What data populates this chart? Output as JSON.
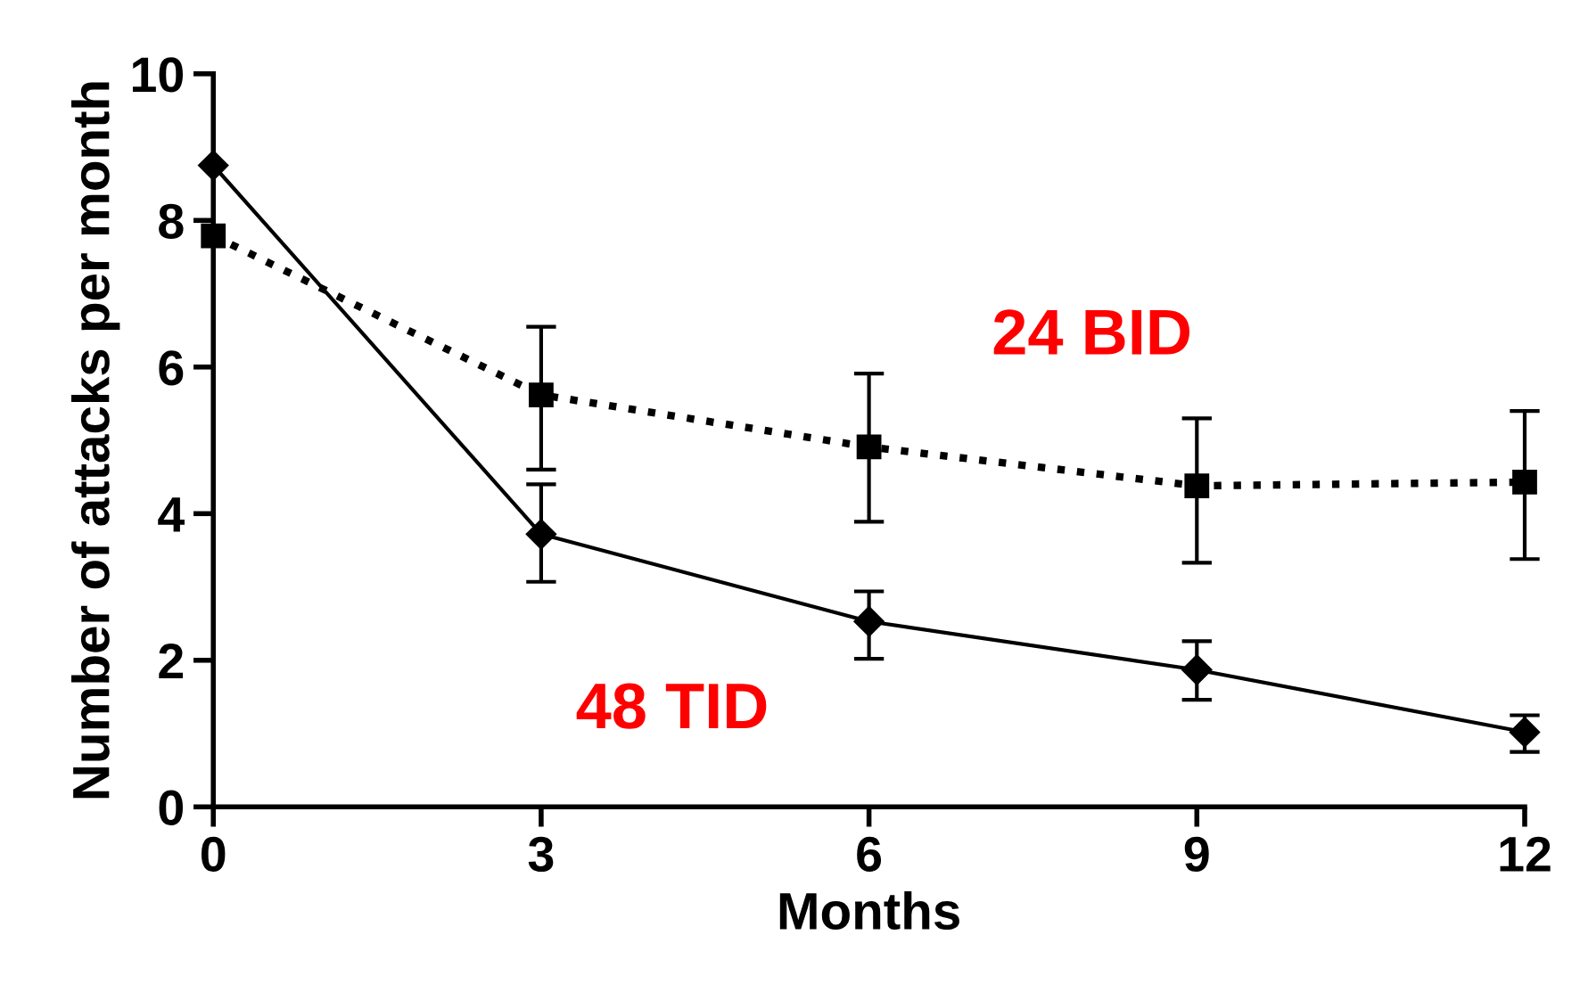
{
  "chart_data": {
    "type": "line",
    "xlabel": "Months",
    "ylabel": "Number of attacks per month",
    "x": [
      0,
      3,
      6,
      9,
      12
    ],
    "series": [
      {
        "name": "48 TID",
        "color": "#000000",
        "marker": "diamond",
        "line_style": "solid",
        "values": [
          8.75,
          3.72,
          2.53,
          1.87,
          1.02
        ],
        "errors": [
          null,
          [
            3.07,
            4.4
          ],
          [
            2.02,
            2.94
          ],
          [
            1.46,
            2.26
          ],
          [
            0.75,
            1.25
          ]
        ]
      },
      {
        "name": "24 BID",
        "color": "#000000",
        "marker": "square",
        "line_style": "dotted",
        "values": [
          7.79,
          5.62,
          4.91,
          4.38,
          4.43
        ],
        "errors": [
          null,
          [
            4.6,
            6.55
          ],
          [
            3.89,
            5.91
          ],
          [
            3.33,
            5.3
          ],
          [
            3.38,
            5.4
          ]
        ]
      }
    ],
    "xlim": [
      0,
      12
    ],
    "xticks": [
      0,
      3,
      6,
      9,
      12
    ],
    "ylim": [
      0,
      10
    ],
    "yticks": [
      0,
      2,
      4,
      6,
      8,
      10
    ],
    "grid": false,
    "legend": false
  }
}
